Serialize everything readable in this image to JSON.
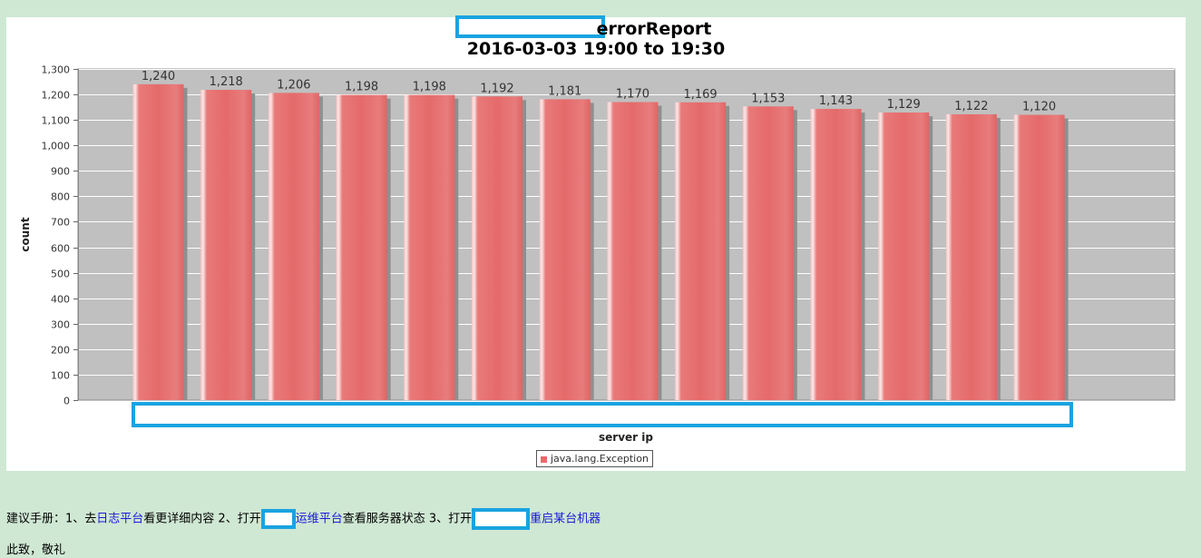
{
  "chart_data": {
    "type": "bar",
    "title": "errorReport",
    "subtitle": "2016-03-03 19:00 to 19:30",
    "xlabel": "server ip",
    "ylabel": "count",
    "ylim": [
      0,
      1300
    ],
    "yticks": [
      0,
      100,
      200,
      300,
      400,
      500,
      600,
      700,
      800,
      900,
      1000,
      1100,
      1200,
      1300
    ],
    "ytick_labels": [
      "0",
      "100",
      "200",
      "300",
      "400",
      "500",
      "600",
      "700",
      "800",
      "900",
      "1,000",
      "1,100",
      "1,200",
      "1,300"
    ],
    "grid": true,
    "legend_position": "bottom-center",
    "bar_color": "#e86a6a",
    "series": [
      {
        "name": "java.lang.Exception",
        "values": [
          1240,
          1218,
          1206,
          1198,
          1198,
          1192,
          1181,
          1170,
          1169,
          1153,
          1143,
          1129,
          1122,
          1120
        ],
        "labels": [
          "1,240",
          "1,218",
          "1,206",
          "1,198",
          "1,198",
          "1,192",
          "1,181",
          "1,170",
          "1,169",
          "1,153",
          "1,143",
          "1,129",
          "1,122",
          "1,120"
        ]
      }
    ]
  },
  "footer": {
    "manual_prefix": "建议手册：1、去",
    "log_platform_link": "日志平台",
    "manual_part2": "看更详细内容 2、打开",
    "ops_platform_link": "运维平台",
    "manual_part3": "查看服务器状态 3、打开",
    "restart_link": "重启某台机器",
    "closing": "此致，敬礼"
  }
}
